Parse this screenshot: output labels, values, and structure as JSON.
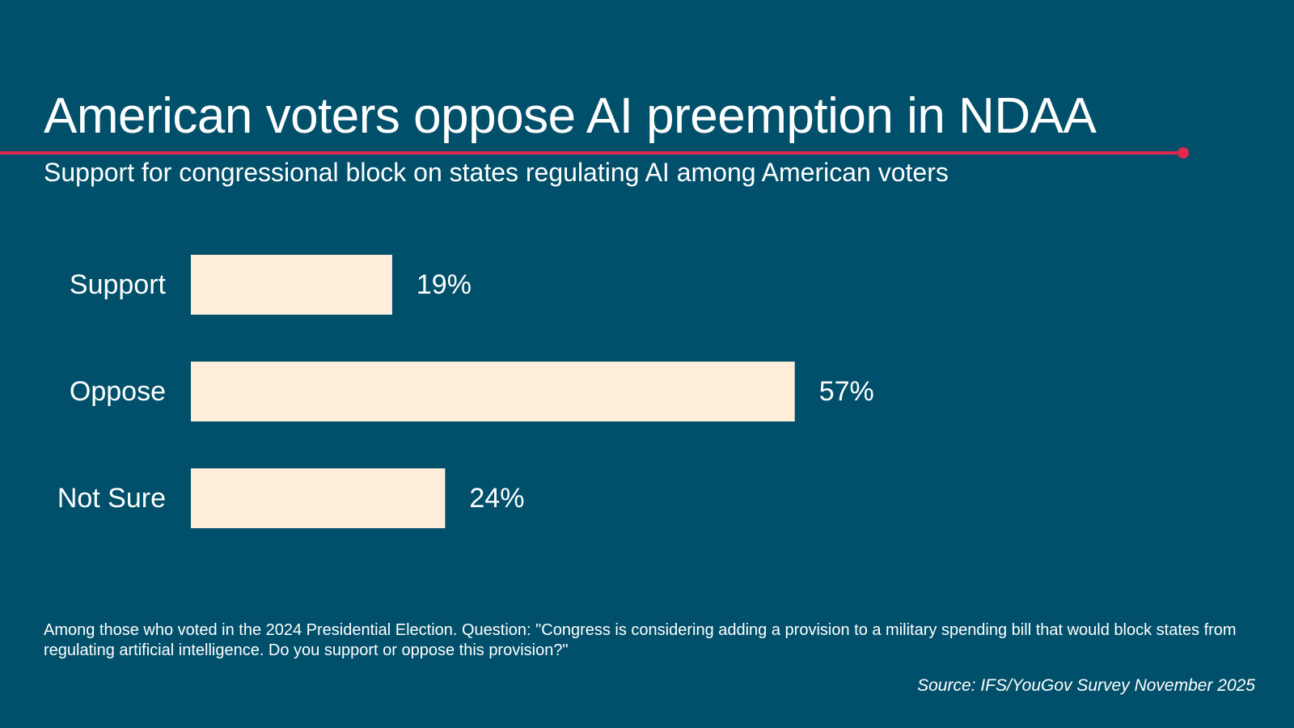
{
  "header": {
    "title": "American voters oppose AI preemption in NDAA",
    "subtitle": "Support for congressional block on states regulating AI among American voters"
  },
  "colors": {
    "background": "#00506b",
    "accent": "#e3284f",
    "bar": "#ffeed9",
    "text": "#ffffff"
  },
  "chart_data": {
    "type": "bar",
    "orientation": "horizontal",
    "title": "American voters oppose AI preemption in NDAA",
    "subtitle": "Support for congressional block on states regulating AI among American voters",
    "categories": [
      "Support",
      "Oppose",
      "Not Sure"
    ],
    "values": [
      19,
      57,
      24
    ],
    "value_labels": [
      "19%",
      "57%",
      "24%"
    ],
    "xlabel": "",
    "ylabel": "",
    "xlim": [
      0,
      100
    ],
    "grid": false,
    "legend": "none"
  },
  "footer": {
    "note": "Among those who voted in the 2024 Presidential Election. Question: \"Congress is considering adding  a provision to a military spending bill that would block states from regulating artificial intelligence. Do you support or oppose this provision?\"",
    "source": "Source: IFS/YouGov Survey November 2025"
  }
}
